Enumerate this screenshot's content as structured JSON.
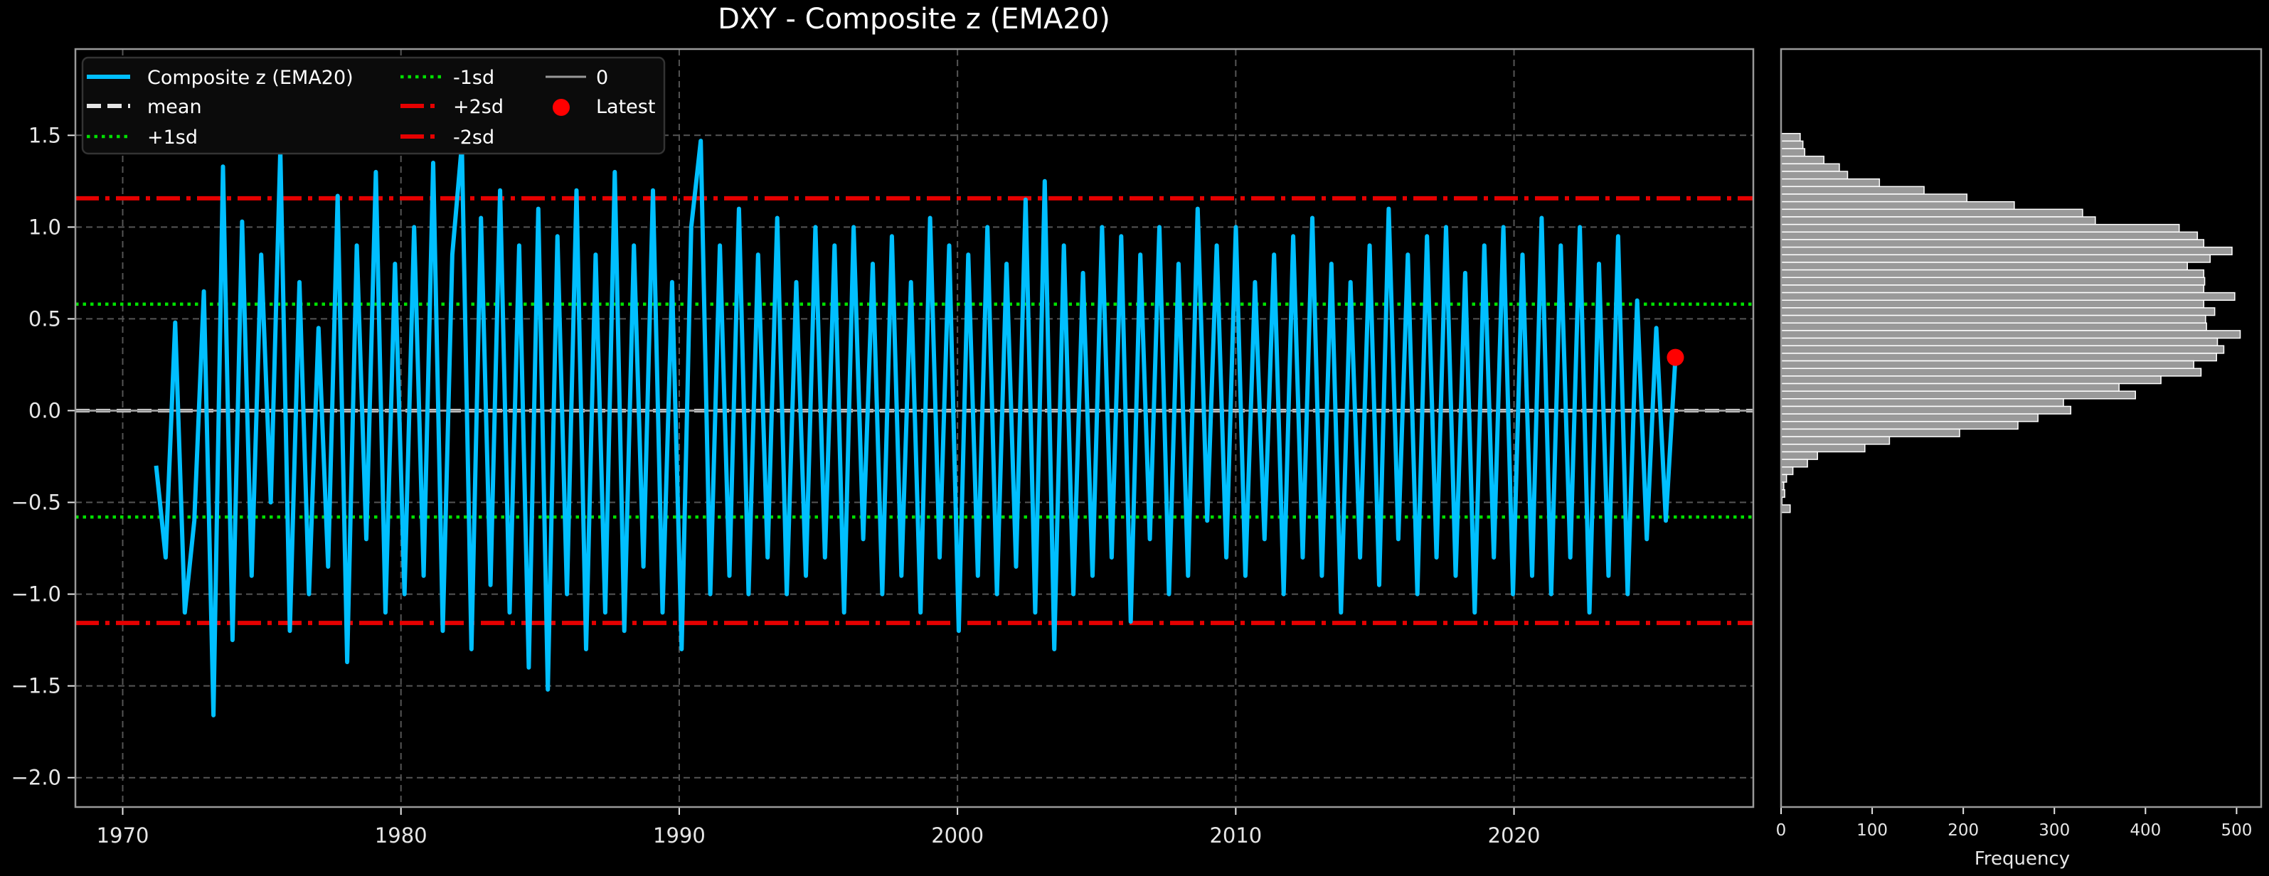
{
  "chart_data": [
    {
      "type": "line",
      "title": "DXY - Composite z (EMA20)",
      "xlabel": "",
      "ylabel": "",
      "xlim": [
        1968.3,
        2028.6
      ],
      "ylim": [
        -2.16,
        1.97
      ],
      "xticks": [
        1970,
        1980,
        1990,
        2000,
        2010,
        2020
      ],
      "yticks": [
        -2.0,
        -1.5,
        -1.0,
        -0.5,
        0.0,
        0.5,
        1.0,
        1.5
      ],
      "grid": true,
      "legend_placement": "top-left",
      "colors": {
        "series": "#00bfff",
        "mean": "#e6e6e6",
        "sd1": "#00e000",
        "sd2": "#e60000",
        "zero": "#999999",
        "latest": "#ff0000",
        "background": "#000000",
        "grid": "#555555"
      },
      "series": [
        {
          "name": "Composite z (EMA20)",
          "x_start": 1971.2,
          "x_end": 2025.8,
          "values": [
            -0.3,
            -0.8,
            0.48,
            -1.1,
            -0.6,
            0.65,
            -1.66,
            1.33,
            -1.25,
            1.03,
            -0.9,
            0.85,
            -0.5,
            1.42,
            -1.2,
            0.7,
            -1.0,
            0.45,
            -0.85,
            1.17,
            -1.37,
            0.9,
            -0.7,
            1.3,
            -1.1,
            0.8,
            -1.0,
            1.0,
            -0.9,
            1.35,
            -1.2,
            0.85,
            1.45,
            -1.3,
            1.05,
            -0.95,
            1.2,
            -1.1,
            0.9,
            -1.4,
            1.1,
            -1.52,
            0.95,
            -1.0,
            1.2,
            -1.3,
            0.85,
            -1.1,
            1.3,
            -1.2,
            0.9,
            -0.85,
            1.2,
            -1.1,
            0.7,
            -1.3,
            1.0,
            1.47,
            -1.0,
            0.9,
            -0.9,
            1.1,
            -1.0,
            0.85,
            -0.8,
            1.05,
            -1.0,
            0.7,
            -0.9,
            1.0,
            -0.8,
            0.9,
            -1.1,
            1.0,
            -0.7,
            0.8,
            -1.0,
            0.95,
            -0.9,
            0.7,
            -1.1,
            1.05,
            -0.8,
            0.9,
            -1.2,
            0.85,
            -0.9,
            1.0,
            -1.0,
            0.8,
            -0.85,
            1.15,
            -1.1,
            1.25,
            -1.3,
            0.9,
            -1.0,
            0.75,
            -0.9,
            1.0,
            -0.8,
            0.95,
            -1.15,
            0.85,
            -0.7,
            1.0,
            -1.0,
            0.8,
            -0.9,
            1.1,
            -0.6,
            0.9,
            -0.8,
            1.0,
            -0.9,
            0.7,
            -0.7,
            0.85,
            -1.0,
            0.95,
            -0.8,
            1.05,
            -0.9,
            0.8,
            -1.1,
            0.7,
            -0.8,
            0.9,
            -0.95,
            1.1,
            -0.7,
            0.85,
            -1.0,
            0.95,
            -0.8,
            1.0,
            -0.9,
            0.75,
            -1.1,
            0.9,
            -0.8,
            1.0,
            -1.0,
            0.85,
            -0.9,
            1.05,
            -1.0,
            0.9,
            -0.8,
            1.0,
            -1.1,
            0.8,
            -0.9,
            0.95,
            -1.0,
            0.6,
            -0.7,
            0.45,
            -0.6,
            0.29
          ]
        }
      ],
      "reference_lines": [
        {
          "name": "mean",
          "y": 0.0,
          "style": "dashed"
        },
        {
          "name": "+1sd",
          "y": 0.58,
          "style": "dotted"
        },
        {
          "name": "-1sd",
          "y": -0.58,
          "style": "dotted"
        },
        {
          "name": "+2sd",
          "y": 1.157,
          "style": "dashdot"
        },
        {
          "name": "-2sd",
          "y": -1.157,
          "style": "dashdot"
        },
        {
          "name": "0",
          "y": 0.0,
          "style": "solid"
        }
      ],
      "latest": {
        "name": "Latest",
        "x": 2025.8,
        "y": 0.29
      },
      "legend": [
        "Composite z (EMA20)",
        "mean",
        "+1sd",
        "-1sd",
        "+2sd",
        "-2sd",
        "0",
        "Latest"
      ]
    },
    {
      "type": "bar",
      "orientation": "horizontal",
      "xlabel": "Frequency",
      "xlim": [
        0,
        527
      ],
      "xticks": [
        0,
        100,
        200,
        300,
        400,
        500
      ],
      "bin_range": [
        -0.555,
        1.51
      ],
      "counts_top_to_bottom": [
        21,
        24,
        26,
        47,
        64,
        73,
        108,
        157,
        204,
        256,
        331,
        345,
        437,
        457,
        464,
        495,
        471,
        446,
        464,
        465,
        464,
        498,
        464,
        476,
        466,
        467,
        504,
        479,
        486,
        478,
        453,
        461,
        417,
        371,
        389,
        310,
        318,
        282,
        260,
        196,
        119,
        92,
        40,
        29,
        13,
        6,
        3,
        4,
        1,
        10
      ],
      "colors": {
        "bar": "#999999",
        "edge": "#ffffff"
      }
    }
  ]
}
